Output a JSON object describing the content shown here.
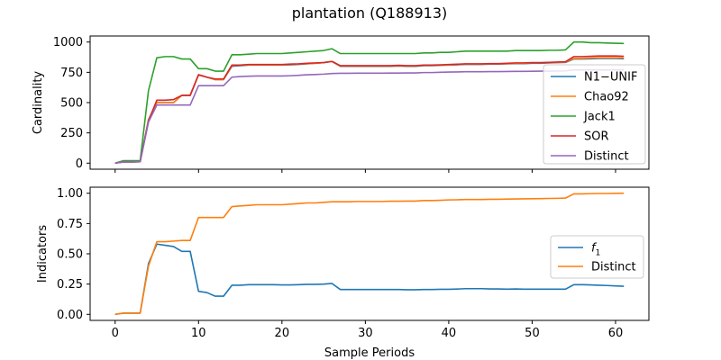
{
  "chart_data": {
    "title": "plantation (Q188913)",
    "xlabel": "Sample Periods",
    "colors": {
      "blue": "#1f77b4",
      "orange": "#ff7f0e",
      "green": "#2ca02c",
      "red": "#d62728",
      "purple": "#9467bd"
    },
    "panels": [
      {
        "type": "line",
        "ylabel": "Cardinality",
        "xlim": [
          -3,
          64
        ],
        "ylim": [
          -50,
          1050
        ],
        "xticks": [
          0,
          10,
          20,
          30,
          40,
          50,
          60
        ],
        "yticks": [
          0,
          250,
          500,
          750,
          1000
        ],
        "ytick_labels": [
          "0",
          "250",
          "500",
          "750",
          "1000"
        ],
        "show_x_tick_labels": false,
        "legend_position": "right",
        "x": [
          0,
          1,
          2,
          3,
          4,
          5,
          6,
          7,
          8,
          9,
          10,
          11,
          12,
          13,
          14,
          15,
          16,
          17,
          18,
          19,
          20,
          21,
          22,
          23,
          24,
          25,
          26,
          27,
          28,
          29,
          30,
          31,
          32,
          33,
          34,
          35,
          36,
          37,
          38,
          39,
          40,
          41,
          42,
          43,
          44,
          45,
          46,
          47,
          48,
          49,
          50,
          51,
          52,
          53,
          54,
          55,
          56,
          57,
          58,
          59,
          60,
          61
        ],
        "series": [
          {
            "name": "N1−UNIF",
            "color": "#1f77b4",
            "values": [
              0,
              10,
              10,
              12,
              360,
              500,
              500,
              500,
              560,
              560,
              730,
              710,
              690,
              690,
              800,
              805,
              810,
              810,
              810,
              810,
              810,
              812,
              815,
              820,
              825,
              830,
              840,
              800,
              800,
              800,
              800,
              800,
              800,
              800,
              802,
              800,
              800,
              805,
              805,
              808,
              810,
              812,
              815,
              815,
              815,
              818,
              818,
              820,
              822,
              822,
              825,
              825,
              827,
              830,
              832,
              860,
              860,
              862,
              865,
              865,
              865,
              862
            ]
          },
          {
            "name": "Chao92",
            "color": "#ff7f0e",
            "values": [
              0,
              10,
              10,
              12,
              360,
              500,
              500,
              500,
              560,
              560,
              730,
              710,
              690,
              690,
              805,
              810,
              812,
              812,
              812,
              812,
              812,
              815,
              818,
              822,
              825,
              830,
              840,
              802,
              802,
              802,
              802,
              802,
              802,
              802,
              805,
              802,
              802,
              808,
              808,
              810,
              812,
              815,
              818,
              818,
              818,
              820,
              820,
              822,
              825,
              825,
              828,
              828,
              830,
              832,
              835,
              865,
              865,
              868,
              870,
              870,
              870,
              868
            ]
          },
          {
            "name": "Jack1",
            "color": "#2ca02c",
            "values": [
              0,
              20,
              20,
              20,
              600,
              870,
              880,
              880,
              860,
              860,
              780,
              780,
              760,
              760,
              895,
              895,
              900,
              905,
              905,
              905,
              905,
              910,
              915,
              920,
              925,
              930,
              945,
              905,
              905,
              905,
              905,
              905,
              905,
              905,
              905,
              905,
              905,
              910,
              910,
              915,
              915,
              920,
              925,
              925,
              925,
              925,
              925,
              925,
              930,
              930,
              930,
              930,
              932,
              932,
              935,
              1000,
              1000,
              995,
              995,
              992,
              990,
              988
            ]
          },
          {
            "name": "SOR",
            "color": "#d62728",
            "values": [
              0,
              10,
              10,
              12,
              350,
              520,
              520,
              525,
              560,
              560,
              730,
              710,
              695,
              695,
              810,
              810,
              815,
              815,
              815,
              815,
              815,
              818,
              820,
              825,
              828,
              830,
              840,
              805,
              805,
              805,
              805,
              805,
              805,
              805,
              808,
              805,
              805,
              810,
              810,
              812,
              815,
              817,
              820,
              820,
              820,
              822,
              822,
              825,
              828,
              828,
              830,
              830,
              832,
              835,
              838,
              880,
              880,
              882,
              885,
              885,
              885,
              882
            ]
          },
          {
            "name": "Distinct",
            "color": "#9467bd",
            "values": [
              0,
              10,
              10,
              12,
              340,
              480,
              480,
              480,
              480,
              480,
              640,
              640,
              640,
              640,
              710,
              715,
              718,
              720,
              720,
              720,
              720,
              722,
              725,
              730,
              732,
              735,
              740,
              742,
              742,
              743,
              743,
              743,
              743,
              744,
              744,
              745,
              745,
              748,
              748,
              750,
              752,
              753,
              755,
              755,
              755,
              756,
              756,
              757,
              758,
              758,
              759,
              760,
              760,
              761,
              762,
              770,
              770,
              770,
              770,
              770,
              770,
              770
            ]
          }
        ]
      },
      {
        "type": "line",
        "ylabel": "Indicators",
        "xlim": [
          -3,
          64
        ],
        "ylim": [
          -0.05,
          1.05
        ],
        "xticks": [
          0,
          10,
          20,
          30,
          40,
          50,
          60
        ],
        "xtick_labels": [
          "0",
          "10",
          "20",
          "30",
          "40",
          "50",
          "60"
        ],
        "yticks": [
          0,
          0.25,
          0.5,
          0.75,
          1.0
        ],
        "ytick_labels": [
          "0.00",
          "0.25",
          "0.50",
          "0.75",
          "1.00"
        ],
        "show_x_tick_labels": true,
        "legend_position": "right",
        "x": [
          0,
          1,
          2,
          3,
          4,
          5,
          6,
          7,
          8,
          9,
          10,
          11,
          12,
          13,
          14,
          15,
          16,
          17,
          18,
          19,
          20,
          21,
          22,
          23,
          24,
          25,
          26,
          27,
          28,
          29,
          30,
          31,
          32,
          33,
          34,
          35,
          36,
          37,
          38,
          39,
          40,
          41,
          42,
          43,
          44,
          45,
          46,
          47,
          48,
          49,
          50,
          51,
          52,
          53,
          54,
          55,
          56,
          57,
          58,
          59,
          60,
          61
        ],
        "series": [
          {
            "name": "f1",
            "label_main": "f",
            "label_sub": "1",
            "color": "#1f77b4",
            "values": [
              0,
              0.01,
              0.01,
              0.01,
              0.42,
              0.58,
              0.57,
              0.56,
              0.52,
              0.52,
              0.19,
              0.18,
              0.15,
              0.15,
              0.24,
              0.24,
              0.245,
              0.245,
              0.245,
              0.245,
              0.243,
              0.243,
              0.245,
              0.248,
              0.248,
              0.25,
              0.255,
              0.205,
              0.205,
              0.205,
              0.205,
              0.205,
              0.205,
              0.205,
              0.205,
              0.203,
              0.203,
              0.205,
              0.205,
              0.207,
              0.207,
              0.209,
              0.212,
              0.212,
              0.212,
              0.21,
              0.21,
              0.208,
              0.21,
              0.208,
              0.208,
              0.208,
              0.208,
              0.208,
              0.208,
              0.245,
              0.245,
              0.243,
              0.24,
              0.238,
              0.235,
              0.232
            ]
          },
          {
            "name": "Distinct",
            "color": "#ff7f0e",
            "values": [
              0,
              0.01,
              0.01,
              0.01,
              0.4,
              0.6,
              0.6,
              0.605,
              0.61,
              0.61,
              0.8,
              0.8,
              0.8,
              0.8,
              0.89,
              0.895,
              0.9,
              0.905,
              0.905,
              0.905,
              0.905,
              0.91,
              0.915,
              0.92,
              0.92,
              0.925,
              0.93,
              0.93,
              0.93,
              0.932,
              0.932,
              0.932,
              0.932,
              0.934,
              0.934,
              0.935,
              0.935,
              0.94,
              0.94,
              0.942,
              0.945,
              0.946,
              0.948,
              0.948,
              0.948,
              0.95,
              0.95,
              0.952,
              0.953,
              0.954,
              0.955,
              0.956,
              0.957,
              0.958,
              0.96,
              0.995,
              0.995,
              0.997,
              0.998,
              0.998,
              0.999,
              1.0
            ]
          }
        ]
      }
    ]
  }
}
